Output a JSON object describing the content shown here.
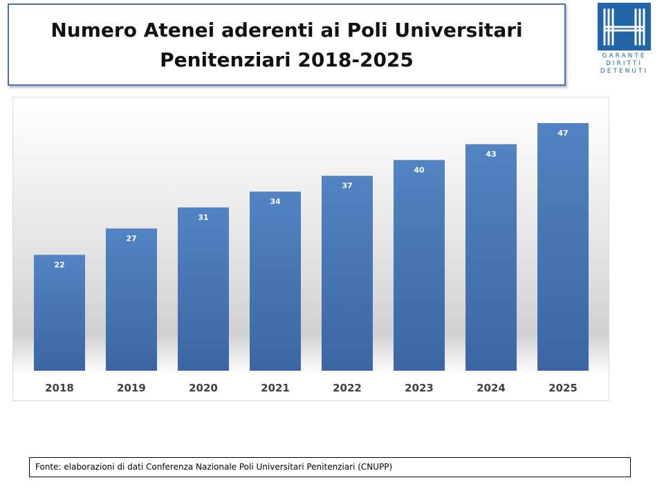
{
  "title": "Numero Atenei aderenti ai Poli Universitari\nPenitenziari 2018-2025",
  "logo": {
    "icon": "garante-h-logo-icon",
    "lines": [
      "GARANTE",
      "DIRITTI",
      "DETENUTI"
    ],
    "color": "#2165a8"
  },
  "chart_data": {
    "type": "bar",
    "title": "",
    "xlabel": "",
    "ylabel": "",
    "categories": [
      "2018",
      "2019",
      "2020",
      "2021",
      "2022",
      "2023",
      "2024",
      "2025"
    ],
    "values": [
      22,
      27,
      31,
      34,
      37,
      40,
      43,
      47
    ],
    "data_labels": [
      "22",
      "27",
      "31",
      "34",
      "37",
      "40",
      "43",
      "47"
    ],
    "ylim": [
      0,
      47
    ],
    "grid": false,
    "legend": "none",
    "bar_color": "#4a78b5"
  },
  "source": "Fonte: elaborazioni di dati  Conferenza Nazionale Poli Universitari Penitenziari (CNUPP)"
}
